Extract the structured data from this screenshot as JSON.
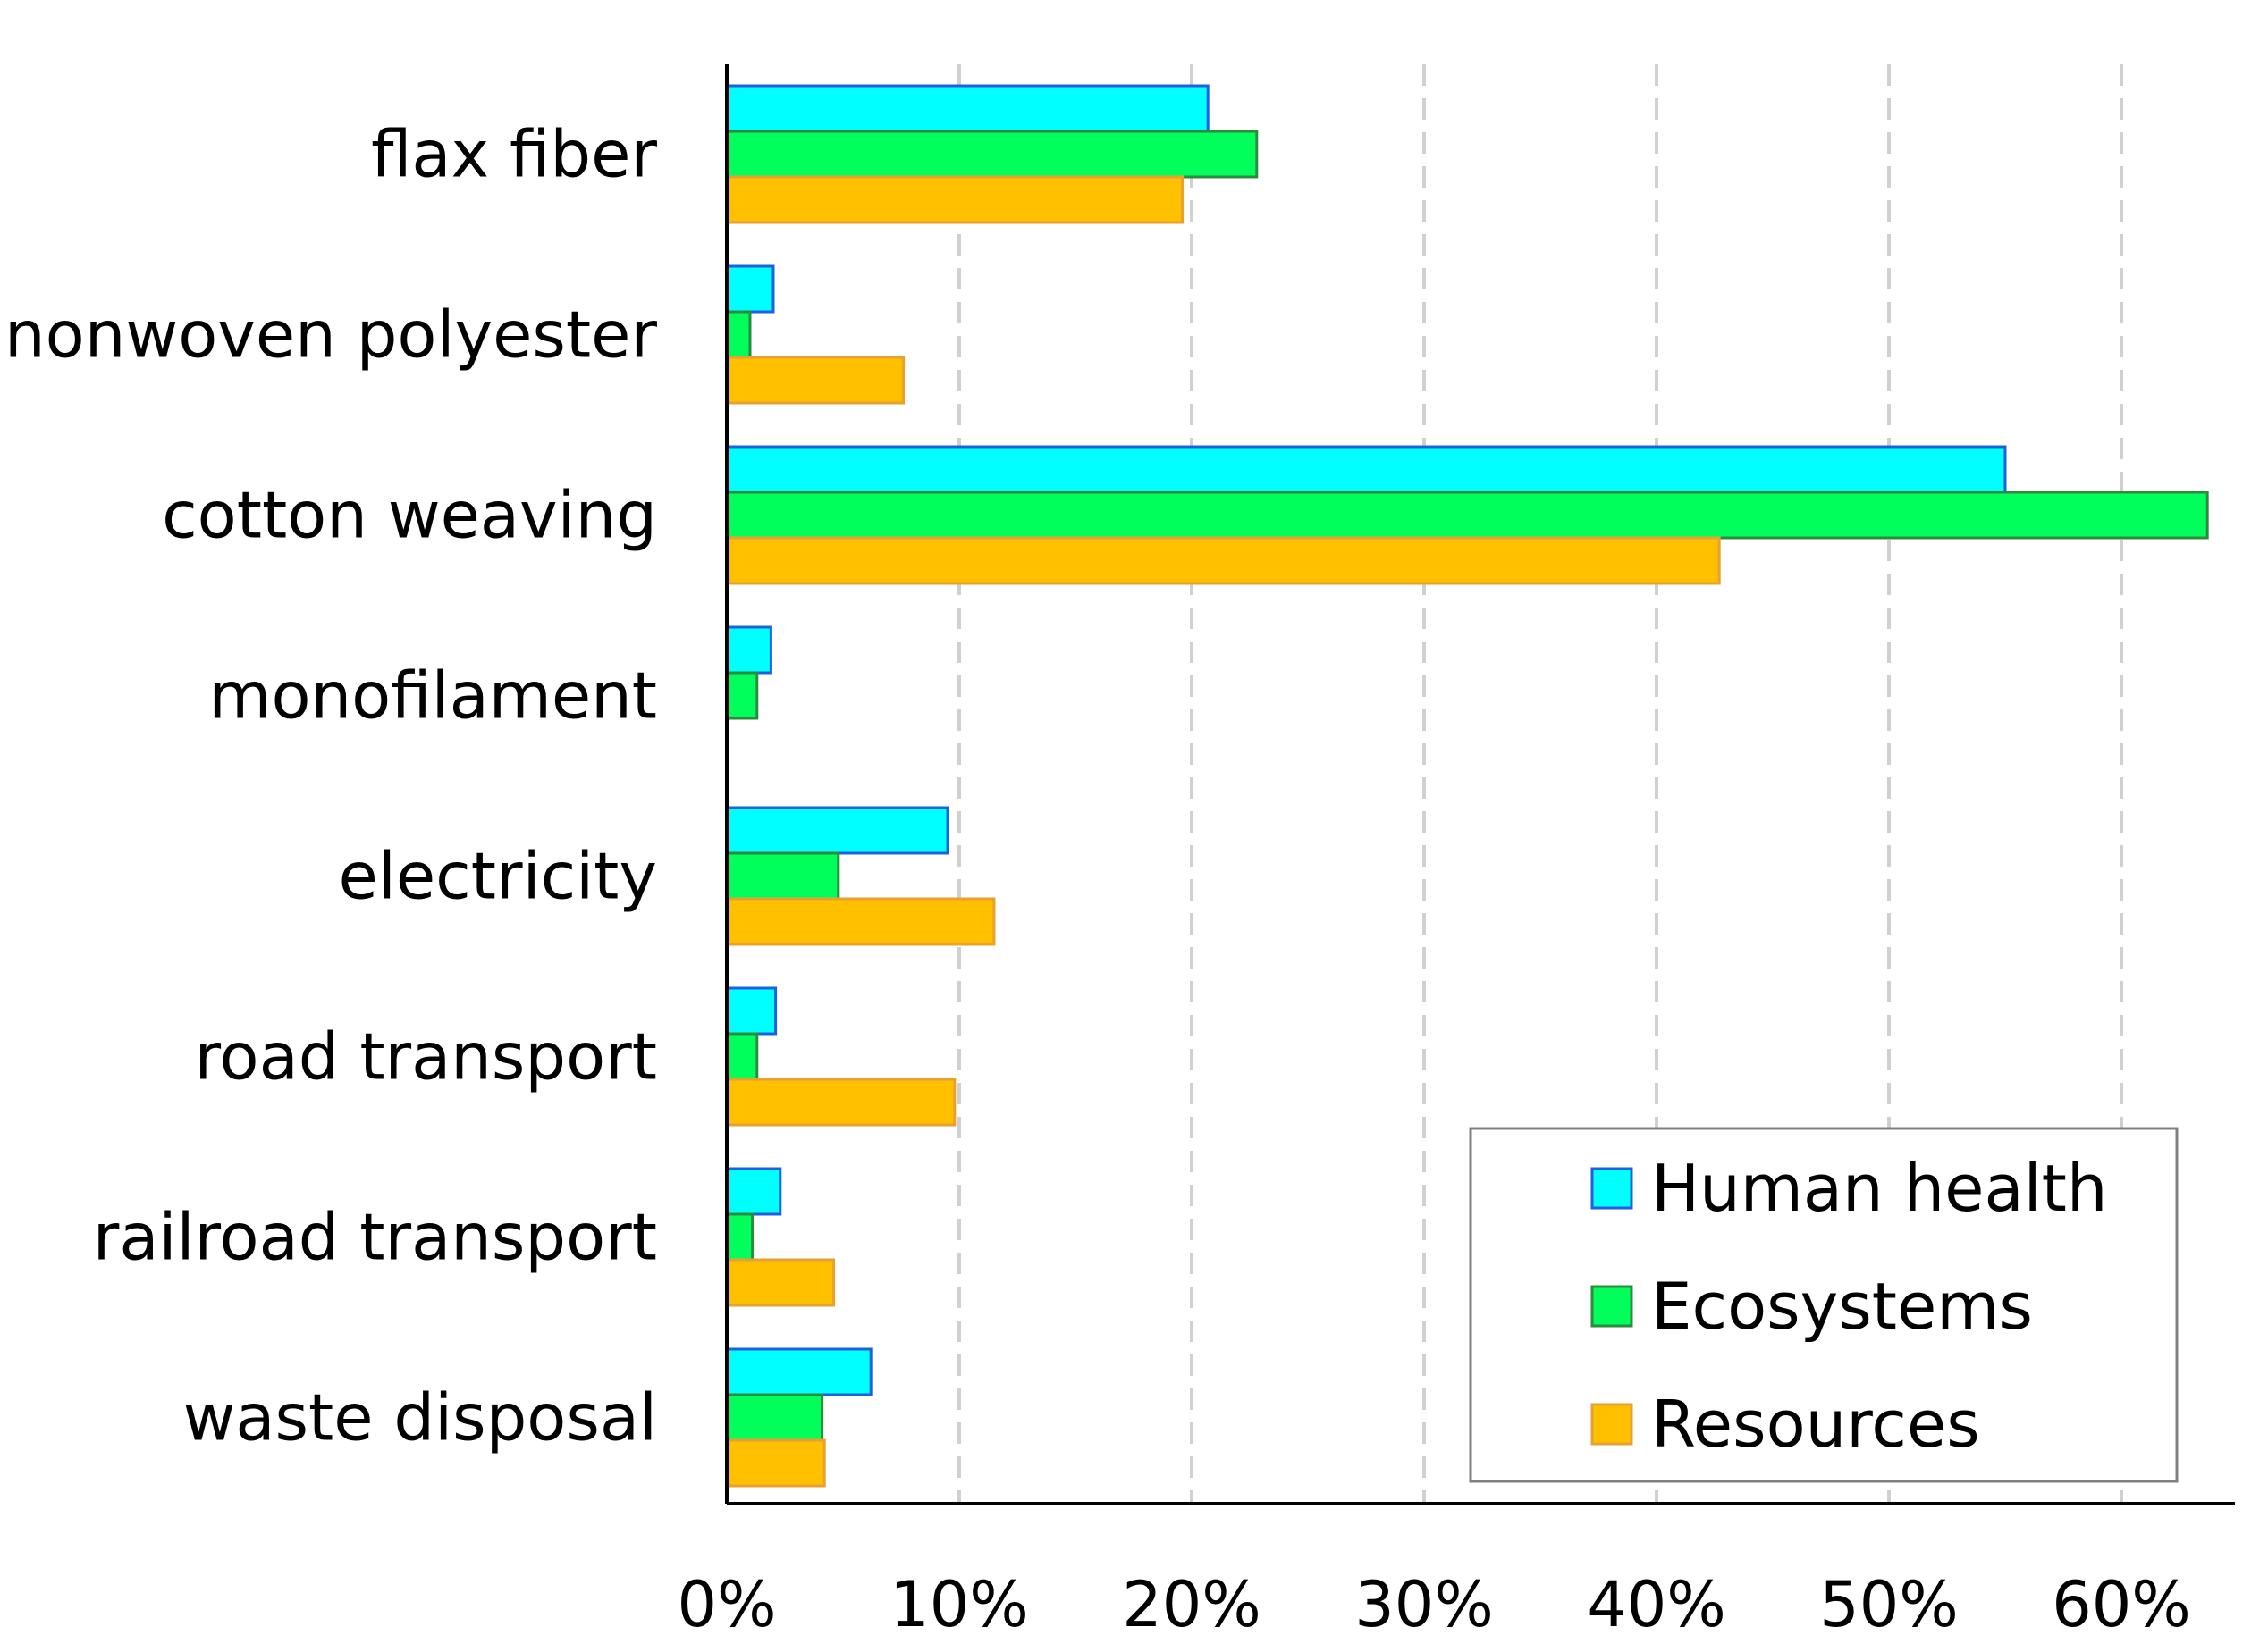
{
  "chart_data": {
    "type": "bar",
    "orientation": "horizontal",
    "title": "",
    "xlabel": "",
    "ylabel": "",
    "categories": [
      "flax fiber",
      "nonwoven polyester",
      "cotton weaving",
      "monofilament",
      "electricity",
      "road transport",
      "railroad transport",
      "waste disposal"
    ],
    "series": [
      {
        "name": "Human health",
        "color": "#00FFFF",
        "border": "#1F5FE0",
        "values": [
          20.7,
          2.0,
          55.0,
          1.9,
          9.5,
          2.1,
          2.3,
          6.2
        ]
      },
      {
        "name": "Ecosystems",
        "color": "#00FF5A",
        "border": "#2E8B3E",
        "values": [
          22.8,
          1.0,
          63.7,
          1.3,
          4.8,
          1.3,
          1.1,
          4.1
        ]
      },
      {
        "name": "Resources",
        "color": "#FFC000",
        "border": "#E8A030",
        "values": [
          19.6,
          7.6,
          42.7,
          0,
          11.5,
          9.8,
          4.6,
          4.2
        ]
      }
    ],
    "xlim": [
      0,
      65
    ],
    "xticks": [
      0,
      10,
      20,
      30,
      40,
      50,
      60
    ],
    "xtick_labels": [
      "0%",
      "10%",
      "20%",
      "30%",
      "40%",
      "50%",
      "60%"
    ],
    "grid": "vertical dashed",
    "legend_position": "bottom-right"
  }
}
